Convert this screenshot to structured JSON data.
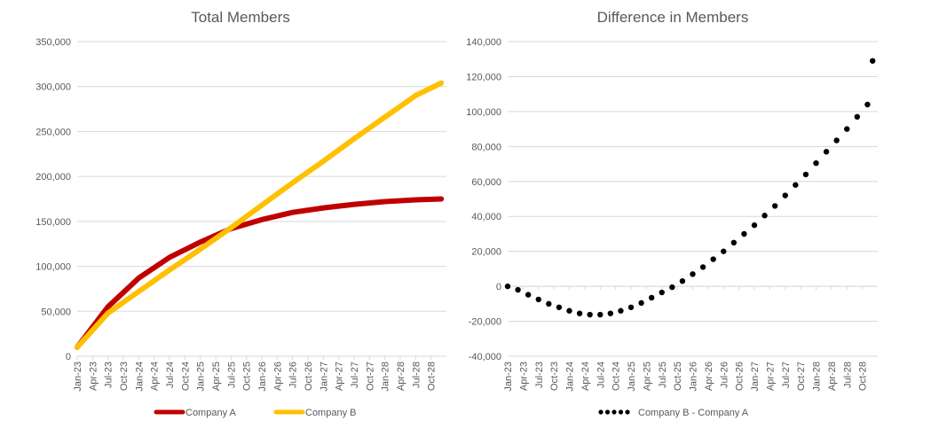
{
  "chart_data": [
    {
      "type": "line",
      "title": "Total Members",
      "xlabel": "",
      "ylabel": "",
      "ylim": [
        0,
        350000
      ],
      "yticks": [
        "0",
        "50,000",
        "100,000",
        "150,000",
        "200,000",
        "250,000",
        "300,000",
        "350,000"
      ],
      "x_tick_labels": [
        "Jan-23",
        "Apr-23",
        "Jul-23",
        "Oct-23",
        "Jan-24",
        "Apr-24",
        "Jul-24",
        "Oct-24",
        "Jan-25",
        "Apr-25",
        "Jul-25",
        "Oct-25",
        "Jan-26",
        "Apr-26",
        "Jul-26",
        "Oct-26",
        "Jan-27",
        "Apr-27",
        "Jul-27",
        "Oct-27",
        "Jan-28",
        "Apr-28",
        "Jul-28",
        "Oct-28"
      ],
      "x_range": [
        "Jan-23",
        "Dec-28"
      ],
      "grid": true,
      "legend_position": "bottom",
      "series": [
        {
          "name": "Company A",
          "color": "#C00000",
          "x": [
            "Jan-23",
            "Jul-23",
            "Jan-24",
            "Jul-24",
            "Jan-25",
            "Jul-25",
            "Jan-26",
            "Jul-26",
            "Jan-27",
            "Jul-27",
            "Jan-28",
            "Jul-28",
            "Dec-28"
          ],
          "values": [
            10000,
            55000,
            87000,
            110000,
            127000,
            142000,
            152000,
            160000,
            165000,
            169000,
            172000,
            174000,
            175000
          ]
        },
        {
          "name": "Company B",
          "color": "#FFC000",
          "x": [
            "Jan-23",
            "Jul-23",
            "Jan-24",
            "Jul-24",
            "Jan-25",
            "Jul-25",
            "Jan-26",
            "Jul-26",
            "Jan-27",
            "Jul-27",
            "Jan-28",
            "Jul-28",
            "Dec-28"
          ],
          "values": [
            10000,
            48000,
            72000,
            96000,
            119000,
            143000,
            168000,
            193000,
            217000,
            242000,
            266000,
            290000,
            304000
          ]
        }
      ]
    },
    {
      "type": "scatter",
      "title": "Difference in Members",
      "xlabel": "",
      "ylabel": "",
      "ylim": [
        -40000,
        140000
      ],
      "yticks": [
        "-40,000",
        "-20,000",
        "0",
        "20,000",
        "40,000",
        "60,000",
        "80,000",
        "100,000",
        "120,000",
        "140,000"
      ],
      "x_tick_labels": [
        "Jan-23",
        "Apr-23",
        "Jul-23",
        "Oct-23",
        "Jan-24",
        "Apr-24",
        "Jul-24",
        "Oct-24",
        "Jan-25",
        "Apr-25",
        "Jul-25",
        "Oct-25",
        "Jan-26",
        "Apr-26",
        "Jul-26",
        "Oct-26",
        "Jan-27",
        "Apr-27",
        "Jul-27",
        "Oct-27",
        "Jan-28",
        "Apr-28",
        "Jul-28",
        "Oct-28"
      ],
      "x_range": [
        "Jan-23",
        "Dec-28"
      ],
      "grid": true,
      "legend_position": "bottom",
      "series": [
        {
          "name": "Company B - Company A",
          "color": "#000000",
          "x": [
            "Jan-23",
            "Mar-23",
            "May-23",
            "Jul-23",
            "Sep-23",
            "Nov-23",
            "Jan-24",
            "Mar-24",
            "May-24",
            "Jul-24",
            "Sep-24",
            "Nov-24",
            "Jan-25",
            "Mar-25",
            "May-25",
            "Jul-25",
            "Sep-25",
            "Nov-25",
            "Jan-26",
            "Mar-26",
            "May-26",
            "Jul-26",
            "Sep-26",
            "Nov-26",
            "Jan-27",
            "Mar-27",
            "May-27",
            "Jul-27",
            "Sep-27",
            "Nov-27",
            "Jan-28",
            "Mar-28",
            "May-28",
            "Jul-28",
            "Sep-28",
            "Nov-28",
            "Dec-28"
          ],
          "values": [
            0,
            -2000,
            -4800,
            -7500,
            -10000,
            -12000,
            -14000,
            -15500,
            -16200,
            -16200,
            -15500,
            -14000,
            -12000,
            -9500,
            -6500,
            -3500,
            -500,
            3000,
            7000,
            11000,
            15500,
            20000,
            25000,
            30000,
            35000,
            40500,
            46000,
            52000,
            58000,
            64000,
            70500,
            77000,
            83500,
            90000,
            97000,
            104000,
            129000
          ]
        }
      ]
    }
  ]
}
